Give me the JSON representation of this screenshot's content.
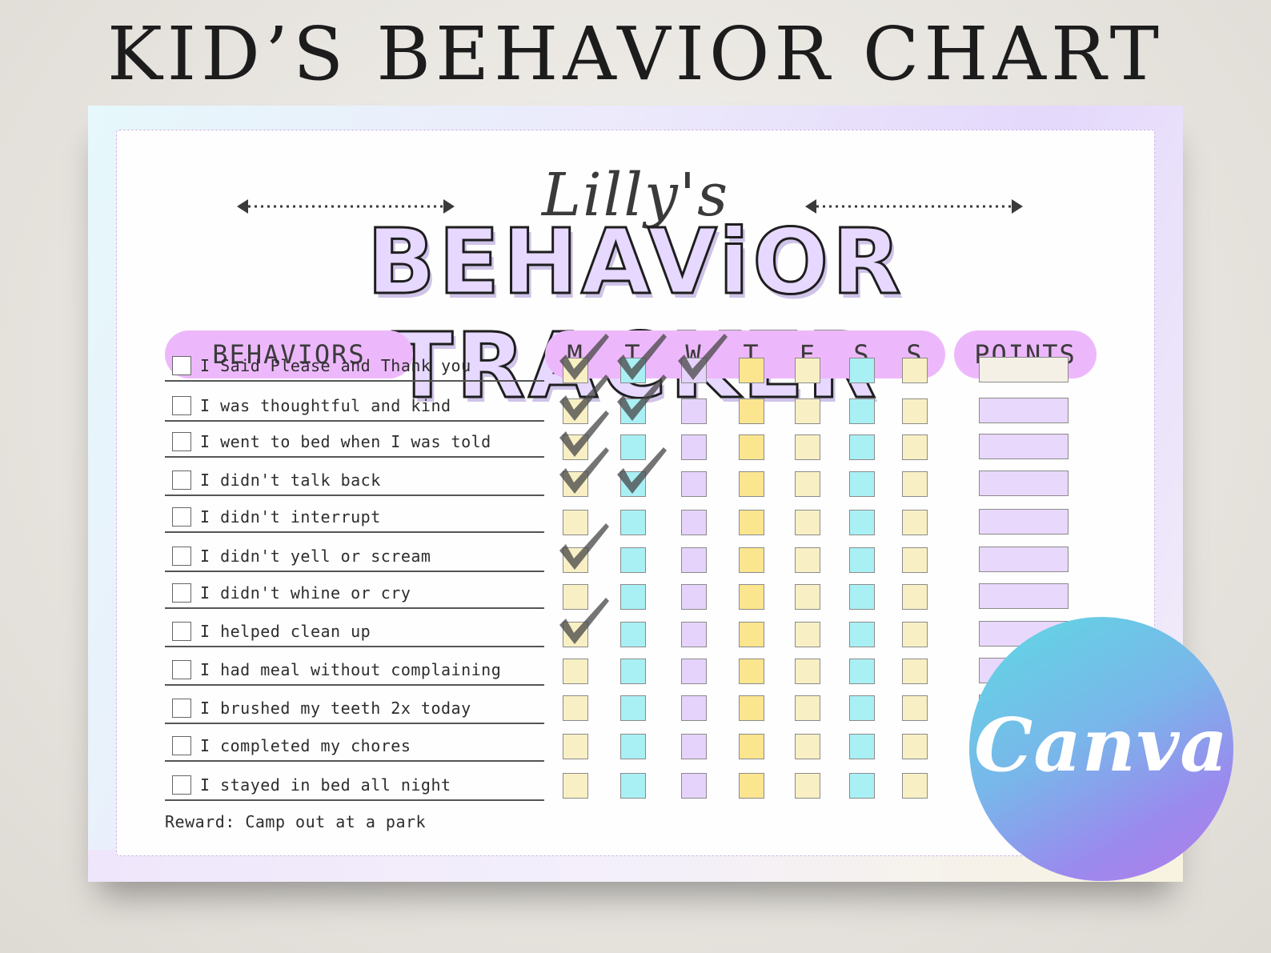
{
  "header": {
    "title": "KID’S BEHAVIOR CHART"
  },
  "chart": {
    "name_title": "Lilly's",
    "tracker_title": "BEHAViOR TRACKER",
    "behaviors_header": "BEHAVIORS",
    "points_header": "POINTS",
    "days": [
      "M",
      "T",
      "W",
      "T",
      "F",
      "S",
      "S"
    ],
    "behaviors": [
      "I Said Please and Thank you",
      "I was thoughtful and kind",
      "I went to bed when I was told",
      "I didn't talk back",
      "I didn't interrupt",
      "I didn't yell or scream",
      "I didn't whine or cry",
      "I helped clean up",
      "I had meal without complaining",
      "I brushed my teeth 2x today",
      "I completed my chores",
      "I stayed in bed all night"
    ],
    "checks": [
      [
        "M",
        "T",
        "W"
      ],
      [
        "M",
        "T"
      ],
      [
        "M"
      ],
      [
        "M",
        "T"
      ],
      [],
      [
        "M"
      ],
      [],
      [
        "M"
      ],
      [],
      [],
      [],
      []
    ],
    "reward": "Reward: Camp out at a park",
    "colors": {
      "M": "#f8f0c4",
      "T": "#a9f0f5",
      "W": "#e5d3fb",
      "T2": "#fbe58f",
      "F": "#f8f0c4",
      "S": "#a9f0f5",
      "S2": "#f8f0c4",
      "points": "#e8d8fb",
      "pill": "#edb8fb"
    }
  },
  "badge": {
    "text": "Canva"
  }
}
